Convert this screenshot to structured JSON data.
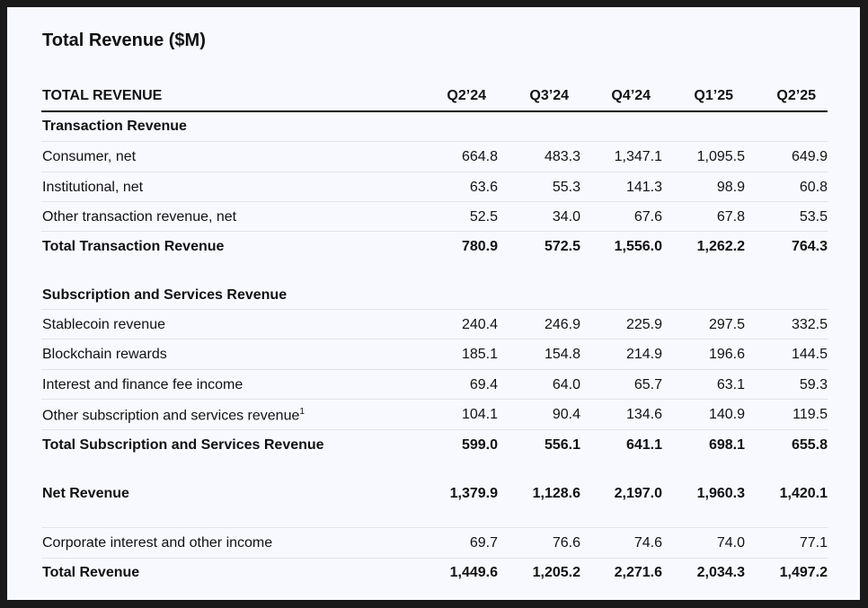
{
  "title": "Total Revenue ($M)",
  "header": {
    "label": "TOTAL REVENUE",
    "periods": [
      "Q2’24",
      "Q3’24",
      "Q4’24",
      "Q1’25",
      "Q2’25"
    ]
  },
  "transaction": {
    "section_title": "Transaction Revenue",
    "rows": [
      {
        "label": "Consumer, net",
        "values": [
          "664.8",
          "483.3",
          "1,347.1",
          "1,095.5",
          "649.9"
        ]
      },
      {
        "label": "Institutional, net",
        "values": [
          "63.6",
          "55.3",
          "141.3",
          "98.9",
          "60.8"
        ]
      },
      {
        "label": "Other transaction revenue, net",
        "values": [
          "52.5",
          "34.0",
          "67.6",
          "67.8",
          "53.5"
        ]
      }
    ],
    "total": {
      "label": "Total Transaction Revenue",
      "values": [
        "780.9",
        "572.5",
        "1,556.0",
        "1,262.2",
        "764.3"
      ]
    }
  },
  "subscription": {
    "section_title": "Subscription and Services Revenue",
    "rows": [
      {
        "label": "Stablecoin revenue",
        "values": [
          "240.4",
          "246.9",
          "225.9",
          "297.5",
          "332.5"
        ]
      },
      {
        "label": "Blockchain rewards",
        "values": [
          "185.1",
          "154.8",
          "214.9",
          "196.6",
          "144.5"
        ]
      },
      {
        "label": "Interest and finance fee income",
        "values": [
          "69.4",
          "64.0",
          "65.7",
          "63.1",
          "59.3"
        ]
      },
      {
        "label": "Other subscription and services revenue",
        "footnote": "1",
        "values": [
          "104.1",
          "90.4",
          "134.6",
          "140.9",
          "119.5"
        ]
      }
    ],
    "total": {
      "label": "Total Subscription and Services Revenue",
      "values": [
        "599.0",
        "556.1",
        "641.1",
        "698.1",
        "655.8"
      ]
    }
  },
  "net_revenue": {
    "label": "Net Revenue",
    "values": [
      "1,379.9",
      "1,128.6",
      "2,197.0",
      "1,960.3",
      "1,420.1"
    ]
  },
  "corporate": {
    "label": "Corporate interest and other income",
    "values": [
      "69.7",
      "76.6",
      "74.6",
      "74.0",
      "77.1"
    ]
  },
  "total_revenue": {
    "label": "Total Revenue",
    "values": [
      "1,449.6",
      "1,205.2",
      "2,271.6",
      "2,034.3",
      "1,497.2"
    ]
  }
}
